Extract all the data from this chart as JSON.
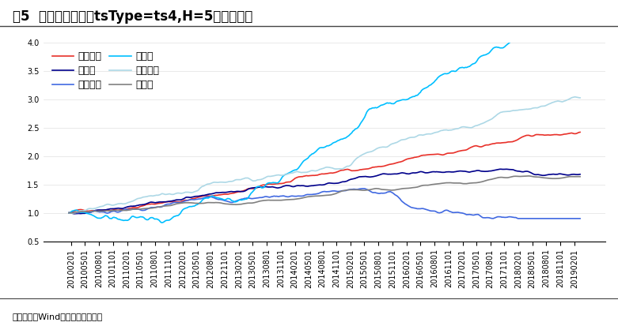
{
  "title": "图5  各板块在参数（tsType=ts4,H=5）下的净值",
  "source": "资料来源：Wind，海通证券研究所",
  "ylim": [
    0.5,
    4.0
  ],
  "yticks": [
    0.5,
    1.0,
    1.5,
    2.0,
    2.5,
    3.0,
    3.5,
    4.0
  ],
  "series_order": [
    "所有品种",
    "农产品",
    "有色金属",
    "黑色系",
    "能源化工",
    "贵金属"
  ],
  "series_colors": {
    "所有品种": "#e8312a",
    "农产品": "#00008b",
    "有色金属": "#4169e1",
    "黑色系": "#00bfff",
    "能源化工": "#add8e6",
    "贵金属": "#808080"
  },
  "legend_col1": [
    "所有品种",
    "有色金属",
    "能源化工"
  ],
  "legend_col2": [
    "农产品",
    "黑色系",
    "贵金属"
  ],
  "background_color": "#ffffff",
  "title_fontsize": 12,
  "legend_fontsize": 9,
  "tick_fontsize": 7,
  "lw": 1.2
}
